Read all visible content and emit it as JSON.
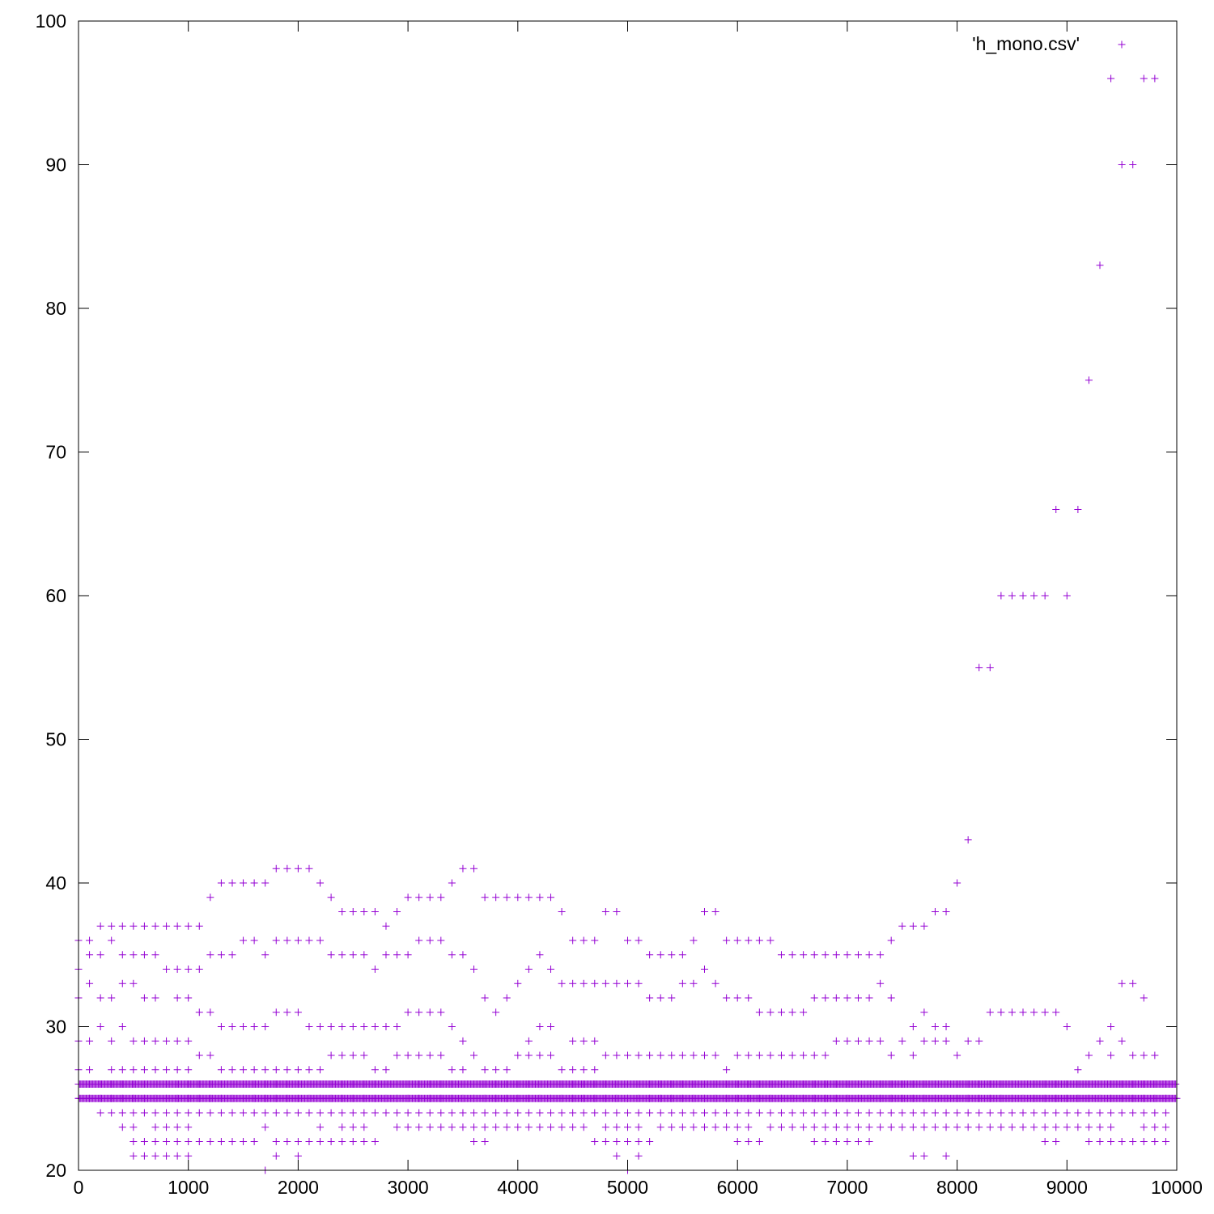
{
  "chart_data": {
    "type": "scatter",
    "title": "",
    "xlabel": "",
    "ylabel": "",
    "xlim": [
      0,
      10000
    ],
    "ylim": [
      20,
      100
    ],
    "xticks": [
      0,
      1000,
      2000,
      3000,
      4000,
      5000,
      6000,
      7000,
      8000,
      9000,
      10000
    ],
    "yticks": [
      20,
      30,
      40,
      50,
      60,
      70,
      80,
      90,
      100
    ],
    "grid": false,
    "legend_position": "top-right",
    "marker": "+",
    "color": "#9400d3",
    "x_step": 100,
    "baseline_values": [
      25,
      26
    ],
    "series": [
      {
        "name": "'h_mono.csv'",
        "columns": [
          [
            32,
            34,
            36,
            29,
            27,
            26,
            25
          ],
          [
            33,
            35,
            36,
            29,
            27,
            26,
            25
          ],
          [
            30,
            32,
            35,
            37,
            26,
            25,
            24
          ],
          [
            29,
            32,
            36,
            37,
            27,
            26,
            25,
            24
          ],
          [
            23,
            27,
            30,
            33,
            35,
            37,
            26,
            25,
            24
          ],
          [
            22,
            21,
            23,
            27,
            29,
            33,
            35,
            37,
            26,
            25,
            24
          ],
          [
            21,
            22,
            24,
            27,
            29,
            32,
            35,
            37,
            26,
            25
          ],
          [
            21,
            22,
            23,
            24,
            27,
            29,
            32,
            35,
            37,
            26,
            25
          ],
          [
            21,
            22,
            23,
            24,
            27,
            29,
            34,
            37,
            26,
            25
          ],
          [
            21,
            22,
            23,
            24,
            27,
            29,
            32,
            34,
            37,
            26,
            25
          ],
          [
            21,
            22,
            23,
            24,
            27,
            29,
            32,
            34,
            37,
            26,
            25
          ],
          [
            22,
            24,
            26,
            28,
            31,
            34,
            37,
            25
          ],
          [
            22,
            24,
            26,
            28,
            31,
            35,
            39,
            25
          ],
          [
            22,
            24,
            27,
            30,
            35,
            40,
            26,
            25
          ],
          [
            22,
            24,
            27,
            30,
            35,
            40,
            26,
            25
          ],
          [
            22,
            24,
            27,
            30,
            36,
            40,
            26,
            25
          ],
          [
            22,
            24,
            27,
            30,
            36,
            40,
            26,
            25
          ],
          [
            20,
            23,
            24,
            26,
            27,
            30,
            35,
            40,
            25
          ],
          [
            21,
            22,
            24,
            26,
            27,
            31,
            36,
            41,
            25
          ],
          [
            22,
            24,
            26,
            27,
            31,
            36,
            41,
            25
          ],
          [
            21,
            22,
            24,
            26,
            27,
            31,
            36,
            41,
            25
          ],
          [
            22,
            24,
            26,
            27,
            30,
            36,
            41,
            25
          ],
          [
            22,
            23,
            24,
            26,
            27,
            30,
            36,
            40,
            25
          ],
          [
            22,
            24,
            26,
            28,
            30,
            35,
            39,
            25
          ],
          [
            22,
            23,
            24,
            26,
            28,
            30,
            35,
            38,
            25
          ],
          [
            22,
            23,
            24,
            26,
            28,
            30,
            35,
            38,
            25
          ],
          [
            22,
            23,
            24,
            26,
            28,
            30,
            35,
            38,
            25
          ],
          [
            22,
            24,
            26,
            27,
            30,
            34,
            38,
            25
          ],
          [
            24,
            26,
            27,
            30,
            35,
            37,
            25
          ],
          [
            23,
            24,
            26,
            28,
            30,
            35,
            38,
            25
          ],
          [
            23,
            24,
            26,
            28,
            31,
            35,
            39,
            25
          ],
          [
            23,
            24,
            26,
            28,
            31,
            36,
            39,
            25
          ],
          [
            23,
            24,
            26,
            28,
            31,
            36,
            39,
            25
          ],
          [
            23,
            24,
            26,
            28,
            31,
            36,
            39,
            25
          ],
          [
            23,
            24,
            26,
            27,
            30,
            35,
            40,
            25
          ],
          [
            23,
            24,
            26,
            27,
            29,
            35,
            41,
            25
          ],
          [
            22,
            23,
            24,
            26,
            28,
            34,
            41,
            25
          ],
          [
            22,
            23,
            24,
            26,
            27,
            32,
            39,
            25
          ],
          [
            23,
            24,
            26,
            27,
            31,
            39,
            25
          ],
          [
            23,
            24,
            26,
            27,
            32,
            39,
            25
          ],
          [
            23,
            24,
            26,
            28,
            33,
            39,
            25
          ],
          [
            23,
            24,
            26,
            28,
            29,
            34,
            39,
            25
          ],
          [
            23,
            24,
            26,
            28,
            30,
            35,
            39,
            25
          ],
          [
            23,
            24,
            26,
            28,
            30,
            34,
            39,
            25
          ],
          [
            23,
            24,
            26,
            27,
            33,
            38,
            25
          ],
          [
            23,
            24,
            26,
            27,
            29,
            33,
            36,
            25
          ],
          [
            23,
            24,
            26,
            27,
            29,
            33,
            36,
            25
          ],
          [
            22,
            24,
            26,
            27,
            29,
            33,
            36,
            25
          ],
          [
            22,
            23,
            24,
            26,
            28,
            33,
            38,
            25
          ],
          [
            21,
            22,
            23,
            24,
            26,
            28,
            33,
            38,
            25
          ],
          [
            20,
            22,
            23,
            24,
            26,
            28,
            33,
            36,
            25
          ],
          [
            21,
            22,
            23,
            24,
            26,
            28,
            33,
            36,
            25
          ],
          [
            22,
            24,
            26,
            28,
            32,
            35,
            25
          ],
          [
            23,
            24,
            26,
            28,
            32,
            35,
            25
          ],
          [
            23,
            24,
            26,
            28,
            32,
            35,
            25
          ],
          [
            23,
            24,
            26,
            28,
            33,
            35,
            25
          ],
          [
            23,
            24,
            26,
            28,
            33,
            36,
            25
          ],
          [
            23,
            24,
            26,
            28,
            34,
            38,
            25
          ],
          [
            23,
            24,
            26,
            28,
            33,
            38,
            25
          ],
          [
            23,
            24,
            26,
            27,
            32,
            36,
            25
          ],
          [
            22,
            23,
            24,
            26,
            28,
            32,
            36,
            25
          ],
          [
            22,
            23,
            24,
            26,
            28,
            32,
            36,
            25
          ],
          [
            22,
            24,
            26,
            28,
            31,
            36,
            25
          ],
          [
            23,
            24,
            26,
            28,
            31,
            36,
            25
          ],
          [
            23,
            24,
            26,
            28,
            31,
            35,
            25
          ],
          [
            23,
            24,
            26,
            28,
            31,
            35,
            25
          ],
          [
            23,
            24,
            26,
            28,
            31,
            35,
            25
          ],
          [
            22,
            23,
            24,
            26,
            28,
            32,
            35,
            25
          ],
          [
            22,
            23,
            24,
            26,
            28,
            32,
            35,
            25
          ],
          [
            22,
            23,
            24,
            26,
            29,
            32,
            35,
            25
          ],
          [
            22,
            23,
            24,
            26,
            29,
            32,
            35,
            25
          ],
          [
            22,
            23,
            24,
            26,
            29,
            32,
            35,
            25
          ],
          [
            22,
            23,
            24,
            26,
            29,
            32,
            35,
            25
          ],
          [
            23,
            24,
            26,
            29,
            33,
            35,
            25
          ],
          [
            23,
            24,
            26,
            28,
            32,
            36,
            25
          ],
          [
            23,
            24,
            26,
            29,
            37,
            25
          ],
          [
            21,
            23,
            24,
            26,
            28,
            30,
            37,
            25
          ],
          [
            21,
            23,
            24,
            26,
            29,
            31,
            37,
            25
          ],
          [
            23,
            24,
            26,
            29,
            30,
            38,
            25
          ],
          [
            21,
            23,
            24,
            26,
            29,
            30,
            38,
            25
          ],
          [
            23,
            24,
            26,
            28,
            40,
            25
          ],
          [
            23,
            24,
            26,
            29,
            43,
            25
          ],
          [
            23,
            24,
            26,
            29,
            55,
            25
          ],
          [
            23,
            24,
            26,
            31,
            55,
            25
          ],
          [
            23,
            24,
            26,
            31,
            60,
            25
          ],
          [
            23,
            24,
            26,
            31,
            60,
            25
          ],
          [
            23,
            24,
            26,
            31,
            60,
            25
          ],
          [
            23,
            24,
            26,
            31,
            60,
            25
          ],
          [
            22,
            23,
            24,
            26,
            31,
            60,
            25
          ],
          [
            22,
            23,
            24,
            26,
            31,
            66,
            25
          ],
          [
            23,
            24,
            26,
            30,
            60,
            25
          ],
          [
            23,
            24,
            26,
            27,
            66,
            25
          ],
          [
            22,
            23,
            24,
            26,
            28,
            75,
            25
          ],
          [
            22,
            23,
            24,
            26,
            29,
            83,
            25
          ],
          [
            22,
            23,
            24,
            26,
            28,
            30,
            96,
            25
          ],
          [
            22,
            24,
            26,
            29,
            33,
            90,
            25
          ],
          [
            22,
            24,
            26,
            28,
            33,
            90,
            25
          ],
          [
            22,
            23,
            24,
            26,
            28,
            32,
            96,
            25
          ],
          [
            22,
            23,
            24,
            26,
            28,
            96,
            25
          ],
          [
            22,
            23,
            24,
            25,
            26
          ]
        ]
      }
    ]
  }
}
